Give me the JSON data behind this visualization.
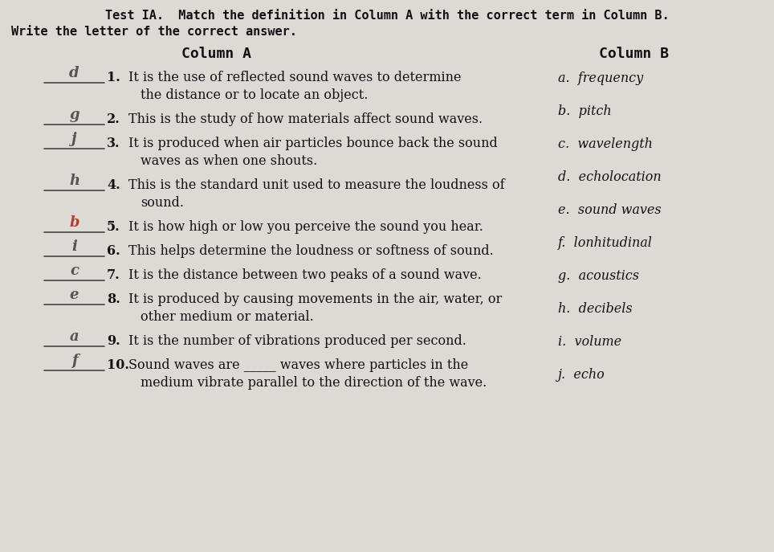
{
  "title_line1": "Test IA.  Match the definition in Column A with the correct term in Column B.",
  "title_line2": "Write the letter of the correct answer.",
  "col_a_header": "Column A",
  "col_b_header": "Column B",
  "bg_color": "#dcdad5",
  "text_color": "#111111",
  "red_color": "#c0392b",
  "pencil_color": "#555555",
  "body_font_size": 11.5,
  "title_font_size": 11.0,
  "header_font_size": 13.0,
  "answer_font_size": 13.0,
  "col_b_items": [
    "a.  frequency",
    "b.  pitch",
    "c.  wavelength",
    "d.  echolocation",
    "e.  sound waves",
    "f.  lonhitudinal",
    "g.  acoustics",
    "h.  decibels",
    "i.  volume",
    "j.  echo"
  ],
  "col_a_items": [
    {
      "num": "1.",
      "prefix": "",
      "lines": [
        "It is the use of reflected sound waves to determine",
        "the distance or to locate an object."
      ],
      "answer": "d",
      "answer_color": "pencil",
      "col_b_idx": 0
    },
    {
      "num": "2.",
      "prefix": "",
      "lines": [
        "This is the study of how materials affect sound waves."
      ],
      "answer": "g",
      "answer_color": "pencil",
      "col_b_idx": 1
    },
    {
      "num": "3.",
      "prefix": "",
      "lines": [
        "It is produced when air particles bounce back the sound",
        "waves as when one shouts."
      ],
      "answer": "j",
      "answer_color": "pencil",
      "col_b_idx": 2
    },
    {
      "num": "4.",
      "prefix": "",
      "lines": [
        "This is the standard unit used to measure the loudness of",
        "sound."
      ],
      "answer": "h",
      "answer_color": "pencil",
      "col_b_idx": 3
    },
    {
      "num": "5.",
      "prefix": "",
      "lines": [
        "It is how high or low you perceive the sound you hear."
      ],
      "answer": "b",
      "answer_color": "red",
      "col_b_idx": 4
    },
    {
      "num": "6.",
      "prefix": "",
      "lines": [
        "This helps determine the loudness or softness of sound."
      ],
      "answer": "i",
      "answer_color": "pencil",
      "col_b_idx": 5
    },
    {
      "num": "7.",
      "prefix": "",
      "lines": [
        "It is the distance between two peaks of a sound wave."
      ],
      "answer": "c",
      "answer_color": "pencil",
      "col_b_idx": 6
    },
    {
      "num": "8.",
      "prefix": "",
      "lines": [
        "It is produced by causing movements in the air, water, or",
        "other medium or material."
      ],
      "answer": "e",
      "answer_color": "pencil",
      "col_b_idx": 7
    },
    {
      "num": "9.",
      "prefix": "",
      "lines": [
        "It is the number of vibrations produced per second."
      ],
      "answer": "a",
      "answer_color": "pencil",
      "col_b_idx": 8
    },
    {
      "num": "10.",
      "prefix": "",
      "lines": [
        "Sound waves are _____ waves where particles in the",
        "medium vibrate parallel to the direction of the wave."
      ],
      "answer": "f",
      "answer_color": "pencil",
      "col_b_idx": 9
    }
  ]
}
